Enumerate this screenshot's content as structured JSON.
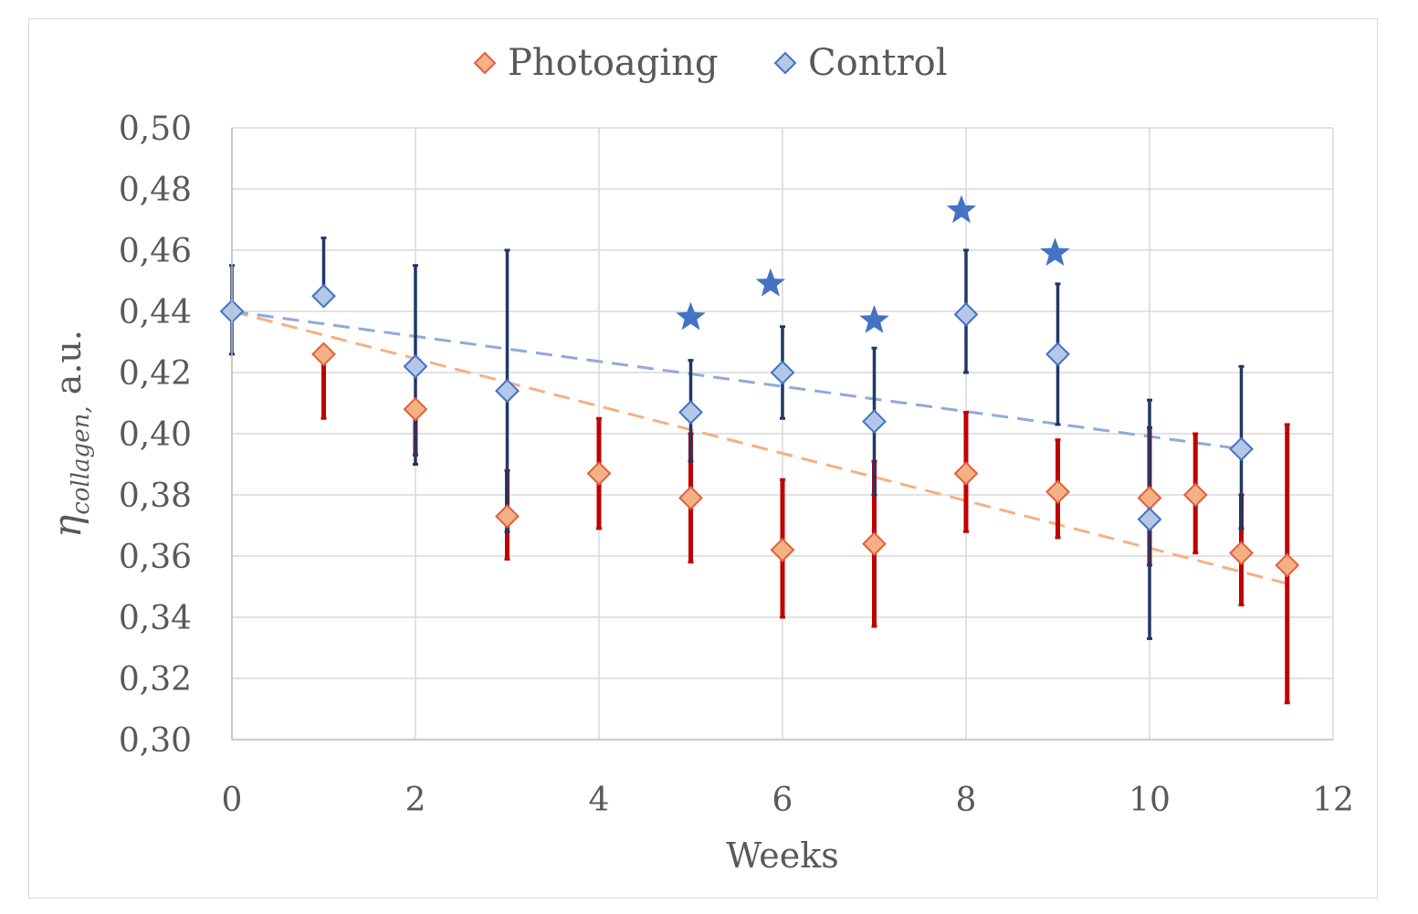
{
  "chart_data": {
    "type": "scatter",
    "title": "",
    "xlabel": "Weeks",
    "ylabel": {
      "symbol": "η",
      "subscript": "collagen,",
      "unit": " a.u."
    },
    "xlim": [
      0,
      12
    ],
    "ylim": [
      0.3,
      0.5
    ],
    "xticks": [
      0,
      2,
      4,
      6,
      8,
      10,
      12
    ],
    "xtick_labels": [
      "0",
      "2",
      "4",
      "6",
      "8",
      "10",
      "12"
    ],
    "yticks": [
      0.3,
      0.32,
      0.34,
      0.36,
      0.38,
      0.4,
      0.42,
      0.44,
      0.46,
      0.48,
      0.5
    ],
    "ytick_labels": [
      "0,30",
      "0,32",
      "0,34",
      "0,36",
      "0,38",
      "0,40",
      "0,42",
      "0,44",
      "0,46",
      "0,48",
      "0,50"
    ],
    "grid": true,
    "legend_position": "top-center",
    "series": [
      {
        "name": "Photoaging",
        "marker": "diamond",
        "fill": "#f4b183",
        "edge": "#e06040",
        "error_color": "#c00000",
        "trend_color": "#f4b183",
        "trendline": [
          [
            0,
            0.44
          ],
          [
            11.5,
            0.351
          ]
        ],
        "points": [
          {
            "x": 1,
            "y": 0.426,
            "lo": 0.405,
            "hi": 0.426
          },
          {
            "x": 2,
            "y": 0.408,
            "lo": 0.393,
            "hi": 0.408
          },
          {
            "x": 3,
            "y": 0.373,
            "lo": 0.359,
            "hi": 0.388
          },
          {
            "x": 4,
            "y": 0.387,
            "lo": 0.369,
            "hi": 0.405
          },
          {
            "x": 5,
            "y": 0.379,
            "lo": 0.358,
            "hi": 0.4
          },
          {
            "x": 6,
            "y": 0.362,
            "lo": 0.34,
            "hi": 0.385
          },
          {
            "x": 7,
            "y": 0.364,
            "lo": 0.337,
            "hi": 0.391
          },
          {
            "x": 8,
            "y": 0.387,
            "lo": 0.368,
            "hi": 0.407
          },
          {
            "x": 9,
            "y": 0.381,
            "lo": 0.366,
            "hi": 0.398
          },
          {
            "x": 10,
            "y": 0.379,
            "lo": 0.357,
            "hi": 0.402
          },
          {
            "x": 10.5,
            "y": 0.38,
            "lo": 0.361,
            "hi": 0.4
          },
          {
            "x": 11,
            "y": 0.361,
            "lo": 0.344,
            "hi": 0.38
          },
          {
            "x": 11.5,
            "y": 0.357,
            "lo": 0.312,
            "hi": 0.403
          }
        ]
      },
      {
        "name": "Control",
        "marker": "diamond",
        "fill": "#b4c7e7",
        "edge": "#4472c4",
        "error_color": "#203864",
        "trend_color": "#8faadc",
        "trendline": [
          [
            0,
            0.44
          ],
          [
            11,
            0.395
          ]
        ],
        "points": [
          {
            "x": 0,
            "y": 0.44,
            "lo": 0.426,
            "hi": 0.455
          },
          {
            "x": 1,
            "y": 0.445,
            "lo": 0.445,
            "hi": 0.464
          },
          {
            "x": 2,
            "y": 0.422,
            "lo": 0.39,
            "hi": 0.455
          },
          {
            "x": 3,
            "y": 0.414,
            "lo": 0.368,
            "hi": 0.46
          },
          {
            "x": 5,
            "y": 0.407,
            "lo": 0.391,
            "hi": 0.424
          },
          {
            "x": 6,
            "y": 0.42,
            "lo": 0.405,
            "hi": 0.435
          },
          {
            "x": 7,
            "y": 0.404,
            "lo": 0.38,
            "hi": 0.428
          },
          {
            "x": 8,
            "y": 0.439,
            "lo": 0.42,
            "hi": 0.46
          },
          {
            "x": 9,
            "y": 0.426,
            "lo": 0.403,
            "hi": 0.449
          },
          {
            "x": 10,
            "y": 0.372,
            "lo": 0.333,
            "hi": 0.411
          },
          {
            "x": 11,
            "y": 0.395,
            "lo": 0.369,
            "hi": 0.422
          }
        ]
      }
    ],
    "annotations": [
      {
        "type": "star",
        "x": 5,
        "y": 0.438
      },
      {
        "type": "star",
        "x": 5.87,
        "y": 0.449
      },
      {
        "type": "star",
        "x": 7,
        "y": 0.437
      },
      {
        "type": "star",
        "x": 7.95,
        "y": 0.473
      },
      {
        "type": "star",
        "x": 8.97,
        "y": 0.459
      }
    ],
    "star_color": "#4472c4"
  }
}
